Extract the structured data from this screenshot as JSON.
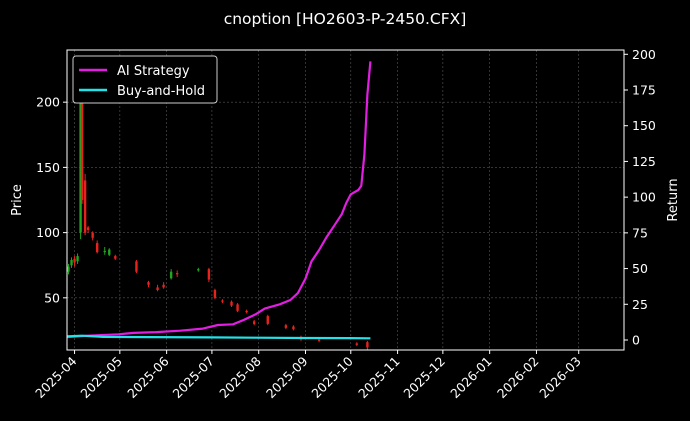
{
  "chart_data": {
    "type": "line",
    "title": "cnoption [HO2603-P-2450.CFX]",
    "left_axis": {
      "label": "Price",
      "range": [
        10,
        240
      ],
      "ticks": [
        50,
        100,
        150,
        200
      ]
    },
    "right_axis": {
      "label": "Return",
      "range": [
        -7,
        203
      ],
      "ticks": [
        0,
        25,
        50,
        75,
        100,
        125,
        150,
        175,
        200
      ]
    },
    "x_axis": {
      "type": "date",
      "range": [
        "2025-03-27",
        "2026-03-31"
      ],
      "ticks": [
        "2025-04-01",
        "2025-05-01",
        "2025-06-01",
        "2025-07-01",
        "2025-08-01",
        "2025-09-01",
        "2025-10-01",
        "2025-11-01",
        "2025-12-01",
        "2026-01-01",
        "2026-02-01",
        "2026-03-01"
      ],
      "tick_labels": [
        "2025-04",
        "2025-05",
        "2025-06",
        "2025-07",
        "2025-08",
        "2025-09",
        "2025-10",
        "2025-11",
        "2025-12",
        "2026-01",
        "2026-02",
        "2026-03"
      ]
    },
    "grid": true,
    "legend_position": "top-left",
    "colors": {
      "ai_strategy": "#e31ee3",
      "buy_and_hold": "#22e3e8",
      "candle_up": "#1fa51f",
      "candle_down": "#e8231e",
      "grid": "#555555",
      "background": "#000000"
    },
    "series": [
      {
        "name": "AI Strategy",
        "axis": "right",
        "points": [
          [
            "2025-03-27",
            2
          ],
          [
            "2025-04-10",
            3
          ],
          [
            "2025-04-30",
            4
          ],
          [
            "2025-05-10",
            5
          ],
          [
            "2025-05-25",
            5.5
          ],
          [
            "2025-06-10",
            6.5
          ],
          [
            "2025-06-25",
            8
          ],
          [
            "2025-07-05",
            10.5
          ],
          [
            "2025-07-15",
            11
          ],
          [
            "2025-07-22",
            14
          ],
          [
            "2025-07-30",
            18
          ],
          [
            "2025-08-05",
            22
          ],
          [
            "2025-08-15",
            25
          ],
          [
            "2025-08-22",
            28
          ],
          [
            "2025-08-27",
            33
          ],
          [
            "2025-09-01",
            43
          ],
          [
            "2025-09-05",
            55
          ],
          [
            "2025-09-10",
            63
          ],
          [
            "2025-09-15",
            72
          ],
          [
            "2025-09-20",
            80
          ],
          [
            "2025-09-25",
            88
          ],
          [
            "2025-09-28",
            96
          ],
          [
            "2025-10-01",
            102
          ],
          [
            "2025-10-06",
            105
          ],
          [
            "2025-10-08",
            108
          ],
          [
            "2025-10-10",
            130
          ],
          [
            "2025-10-12",
            172
          ],
          [
            "2025-10-14",
            195
          ]
        ]
      },
      {
        "name": "Buy-and-Hold",
        "axis": "right",
        "points": [
          [
            "2025-03-27",
            2.5
          ],
          [
            "2025-04-06",
            3
          ],
          [
            "2025-04-20",
            2.2
          ],
          [
            "2025-05-20",
            2.0
          ],
          [
            "2025-06-30",
            1.8
          ],
          [
            "2025-07-31",
            1.6
          ],
          [
            "2025-08-31",
            1.4
          ],
          [
            "2025-09-30",
            1.3
          ],
          [
            "2025-10-14",
            1.2
          ]
        ]
      }
    ],
    "candles": [
      {
        "date": "2025-03-28",
        "open": 70,
        "close": 74,
        "high": 76,
        "low": 68
      },
      {
        "date": "2025-03-30",
        "open": 75,
        "close": 79,
        "high": 81,
        "low": 73
      },
      {
        "date": "2025-04-01",
        "open": 80,
        "close": 77,
        "high": 82,
        "low": 74
      },
      {
        "date": "2025-04-03",
        "open": 78,
        "close": 82,
        "high": 84,
        "low": 76
      },
      {
        "date": "2025-04-05",
        "open": 100,
        "close": 230,
        "high": 235,
        "low": 95
      },
      {
        "date": "2025-04-06",
        "open": 230,
        "close": 125,
        "high": 232,
        "low": 122
      },
      {
        "date": "2025-04-08",
        "open": 140,
        "close": 100,
        "high": 145,
        "low": 98
      },
      {
        "date": "2025-04-10",
        "open": 104,
        "close": 102,
        "high": 105,
        "low": 100
      },
      {
        "date": "2025-04-13",
        "open": 100,
        "close": 96,
        "high": 101,
        "low": 94
      },
      {
        "date": "2025-04-16",
        "open": 92,
        "close": 85,
        "high": 94,
        "low": 84
      },
      {
        "date": "2025-04-21",
        "open": 85,
        "close": 86,
        "high": 89,
        "low": 83
      },
      {
        "date": "2025-04-24",
        "open": 83,
        "close": 87,
        "high": 88,
        "low": 82
      },
      {
        "date": "2025-04-28",
        "open": 82,
        "close": 80,
        "high": 83,
        "low": 79
      },
      {
        "date": "2025-05-12",
        "open": 78,
        "close": 70,
        "high": 79,
        "low": 69
      },
      {
        "date": "2025-05-20",
        "open": 62,
        "close": 60,
        "high": 63,
        "low": 58
      },
      {
        "date": "2025-05-26",
        "open": 58,
        "close": 56,
        "high": 60,
        "low": 55
      },
      {
        "date": "2025-05-30",
        "open": 60,
        "close": 58,
        "high": 62,
        "low": 57
      },
      {
        "date": "2025-06-04",
        "open": 65,
        "close": 70,
        "high": 72,
        "low": 64
      },
      {
        "date": "2025-06-08",
        "open": 69,
        "close": 68,
        "high": 71,
        "low": 66
      },
      {
        "date": "2025-06-22",
        "open": 71,
        "close": 72,
        "high": 73,
        "low": 70
      },
      {
        "date": "2025-06-29",
        "open": 72,
        "close": 64,
        "high": 73,
        "low": 62
      },
      {
        "date": "2025-07-03",
        "open": 56,
        "close": 50,
        "high": 57,
        "low": 49
      },
      {
        "date": "2025-07-08",
        "open": 48,
        "close": 47,
        "high": 49,
        "low": 46
      },
      {
        "date": "2025-07-14",
        "open": 47,
        "close": 44,
        "high": 48,
        "low": 43
      },
      {
        "date": "2025-07-18",
        "open": 45,
        "close": 40,
        "high": 46,
        "low": 39
      },
      {
        "date": "2025-07-24",
        "open": 40,
        "close": 39,
        "high": 41,
        "low": 38
      },
      {
        "date": "2025-07-29",
        "open": 32,
        "close": 30,
        "high": 33,
        "low": 29
      },
      {
        "date": "2025-08-07",
        "open": 36,
        "close": 30,
        "high": 37,
        "low": 29
      },
      {
        "date": "2025-08-19",
        "open": 29,
        "close": 27,
        "high": 30,
        "low": 26
      },
      {
        "date": "2025-08-24",
        "open": 28,
        "close": 26,
        "high": 29,
        "low": 25
      },
      {
        "date": "2025-08-29",
        "open": 20,
        "close": 18,
        "high": 21,
        "low": 17
      },
      {
        "date": "2025-09-10",
        "open": 18,
        "close": 17,
        "high": 19,
        "low": 16
      },
      {
        "date": "2025-10-05",
        "open": 15,
        "close": 14,
        "high": 16,
        "low": 13
      },
      {
        "date": "2025-10-12",
        "open": 16,
        "close": 12,
        "high": 17,
        "low": 10
      }
    ]
  }
}
